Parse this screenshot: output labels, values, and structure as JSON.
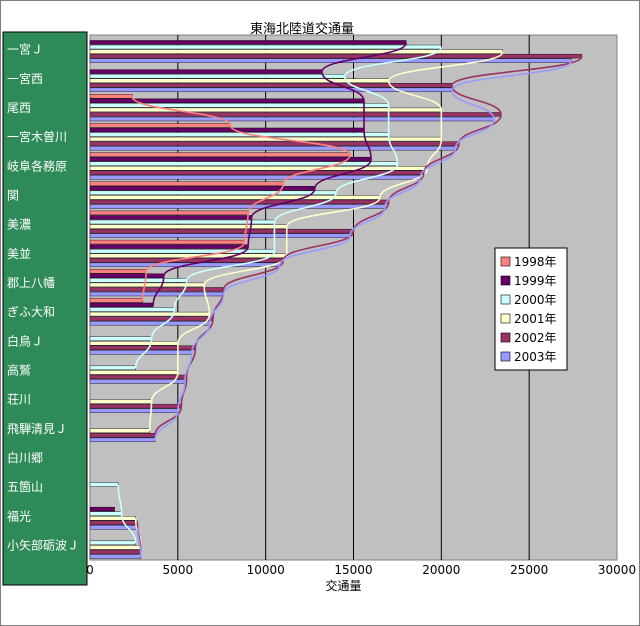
{
  "chart_data": {
    "type": "bar",
    "orientation": "horizontal",
    "title": "東海北陸道交通量",
    "xlabel": "交通量",
    "ylabel": "",
    "xlim": [
      0,
      30000
    ],
    "xticks": [
      "0",
      "5000",
      "10000",
      "15000",
      "20000",
      "25000",
      "30000"
    ],
    "grid": true,
    "legend_position": "right",
    "categories": [
      "一宮Ｊ",
      "一宮西",
      "尾西",
      "一宮木曽川",
      "岐阜各務原",
      "関",
      "美濃",
      "美並",
      "郡上八幡",
      "ぎふ大和",
      "白鳥Ｊ",
      "高鷲",
      "荘川",
      "飛騨清見Ｊ",
      "白川郷",
      "五箇山",
      "福光",
      "小矢部砺波Ｊ"
    ],
    "series": [
      {
        "name": "1998年",
        "color": "#ff8080",
        "values": [
          0,
          0,
          2400,
          8000,
          14800,
          11000,
          9000,
          8800,
          3200,
          3000,
          0,
          0,
          0,
          0,
          0,
          0,
          0,
          0
        ]
      },
      {
        "name": "1999年",
        "color": "#660066",
        "values": [
          18000,
          13200,
          15600,
          15600,
          16000,
          12800,
          9200,
          9000,
          4200,
          3600,
          0,
          0,
          0,
          0,
          0,
          0,
          1400,
          0
        ]
      },
      {
        "name": "2000年",
        "color": "#ccffff",
        "values": [
          20000,
          14500,
          17000,
          17000,
          17500,
          14000,
          10500,
          10500,
          5500,
          4800,
          3500,
          2600,
          0,
          0,
          0,
          1600,
          1800,
          2600
        ]
      },
      {
        "name": "2001年",
        "color": "#ffffcc",
        "values": [
          23500,
          17000,
          20000,
          20000,
          19200,
          16500,
          11200,
          11200,
          6500,
          6800,
          5000,
          5000,
          3500,
          3400,
          0,
          0,
          2600,
          2900
        ]
      },
      {
        "name": "2002年",
        "color": "#993366",
        "values": [
          28000,
          20600,
          23400,
          21000,
          19000,
          17000,
          15000,
          11000,
          7600,
          7000,
          6000,
          5500,
          5200,
          3700,
          0,
          0,
          2700,
          2900
        ]
      },
      {
        "name": "2003年",
        "color": "#9999ff",
        "values": [
          27400,
          20600,
          23000,
          20800,
          18800,
          16800,
          14800,
          10800,
          7600,
          6800,
          5800,
          5400,
          5000,
          3700,
          0,
          0,
          2700,
          2900
        ]
      }
    ]
  }
}
